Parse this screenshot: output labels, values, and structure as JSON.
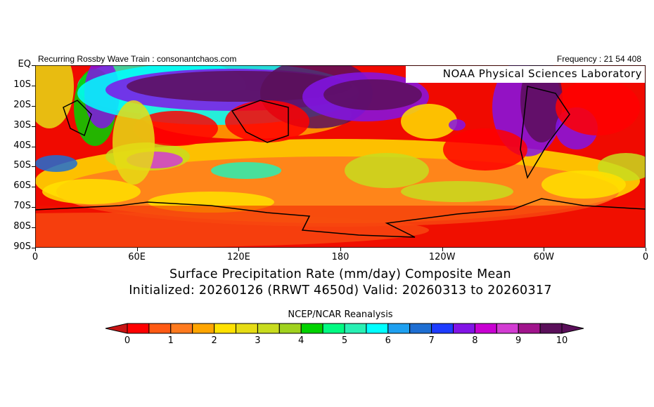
{
  "header": {
    "left_text": "Recurring Rossby Wave Train : consonantchaos.com",
    "right_text": "Frequency : 21 54 408",
    "lab_label": "NOAA Physical Sciences Laboratory"
  },
  "map": {
    "lat_labels": [
      "EQ",
      "10S",
      "20S",
      "30S",
      "40S",
      "50S",
      "60S",
      "70S",
      "80S",
      "90S"
    ],
    "lon_labels": [
      "0",
      "60E",
      "120E",
      "180",
      "120W",
      "60W",
      "0"
    ],
    "variable": "Surface Precipitation Rate (mm/day)"
  },
  "titles": {
    "line1": "Surface Precipitation Rate (mm/day) Composite Mean",
    "line2": "Initialized: 20260126 (RRWT 4650d) Valid: 20260313 to 20260317",
    "source": "NCEP/NCAR Reanalysis"
  },
  "colorbar": {
    "tick_labels": [
      "0",
      "1",
      "2",
      "3",
      "4",
      "5",
      "6",
      "7",
      "8",
      "9",
      "10"
    ],
    "colors": [
      "#ff0000",
      "#ff5a14",
      "#ff7a1e",
      "#ffa500",
      "#ffe100",
      "#e6dc14",
      "#c8dc1e",
      "#a0d21e",
      "#00d200",
      "#00fa82",
      "#28f0b4",
      "#00ffff",
      "#1ea0f0",
      "#1e6ed2",
      "#1e3cff",
      "#8214e6",
      "#c800d2",
      "#d23cd2",
      "#a0148c",
      "#5a0f5a"
    ],
    "under_color": "#c81414",
    "over_color": "#5a0f5a",
    "range": [
      0,
      10
    ],
    "step": 0.5
  }
}
